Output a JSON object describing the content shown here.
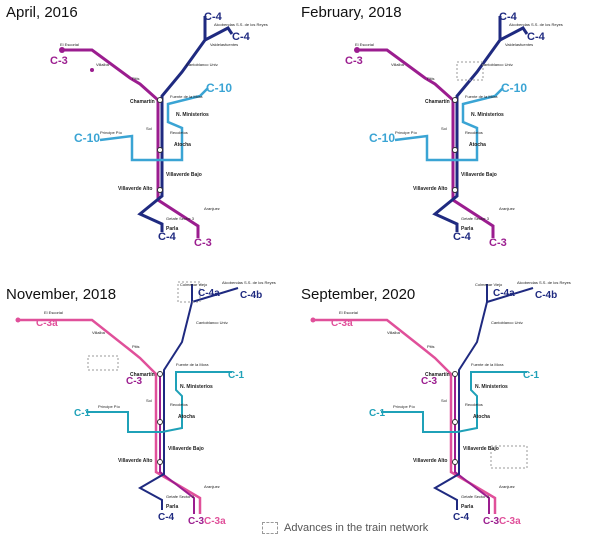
{
  "colors": {
    "c3_2016": "#9b1d8f",
    "c4": "#1f2a80",
    "c10": "#3aa4d4",
    "c3_2018b": "#e0509a",
    "c1": "#1fa1b8",
    "advance_box": "#9a9a9a"
  },
  "panels": [
    {
      "title": "April, 2016",
      "labels": {
        "c4_top": "C-4",
        "c4_right": "C-4",
        "c3_left": "C-3",
        "c3_bottom": "C-3",
        "c4_bottom": "C-4",
        "c10_right": "C-10",
        "c10_left": "C-10",
        "el_escorial": "El Escorial",
        "alcobendas": "Alcobendas S.S. de los Reyes",
        "valdelasfuentes": "Valdelasfuentes",
        "cantoblanco": "Cantoblanco Univ.",
        "villalba": "Villalba",
        "pitis": "Pitis",
        "chamartin": "Chamartín",
        "nuevos_ministerios": "N. Ministerios",
        "principe_pio": "Príncipe Pío",
        "atocha": "Atocha",
        "sol": "Sol",
        "villaverde_bajo": "Villaverde Bajo",
        "villaverde_alto": "Villaverde Alto",
        "parla": "Parla",
        "getafe": "Getafe Sector 3",
        "aranjuez": "Aranjuez",
        "principe_pio_2": "Fuente de la Mora",
        "recoletos": "Recoletos"
      }
    },
    {
      "title": "February, 2018",
      "labels": {
        "c4_top": "C-4",
        "c4_right": "C-4",
        "c3_left": "C-3",
        "c3_bottom": "C-3",
        "c4_bottom": "C-4",
        "c10_right": "C-10",
        "c10_left": "C-10",
        "el_escorial": "El Escorial",
        "alcobendas": "Alcobendas S.S. de los Reyes",
        "valdelasfuentes": "Valdelasfuentes",
        "cantoblanco": "Cantoblanco Univ.",
        "villalba": "Villalba",
        "pitis": "Pitis",
        "chamartin": "Chamartín",
        "nuevos_ministerios": "N. Ministerios",
        "principe_pio": "Príncipe Pío",
        "atocha": "Atocha",
        "sol": "Sol",
        "villaverde_bajo": "Villaverde Bajo",
        "villaverde_alto": "Villaverde Alto",
        "parla": "Parla",
        "getafe": "Getafe Sector 3",
        "aranjuez": "Aranjuez",
        "principe_pio_2": "Fuente de la Mora",
        "recoletos": "Recoletos"
      }
    },
    {
      "title": "November, 2018",
      "labels": {
        "c4_top": "C-4a",
        "c4_right": "C-4b",
        "c3_left": "C-3a",
        "c3_bottom": "C-3",
        "c3_bottom2": "C-3a",
        "c4_bottom": "C-4",
        "c1_right": "C-1",
        "c1_left": "C-1",
        "c3_mid": "C-3",
        "el_escorial": "El Escorial",
        "alcobendas": "Alcobendas S.S. de los Reyes",
        "colmenar": "Colmenar Viejo",
        "cantoblanco": "Cantoblanco Univ.",
        "villalba": "Villalba",
        "pitis": "Pitis",
        "chamartin": "Chamartín",
        "nuevos_ministerios": "N. Ministerios",
        "principe_pio": "Príncipe Pío",
        "atocha": "Atocha",
        "sol": "Sol",
        "villaverde_bajo": "Villaverde Bajo",
        "villaverde_alto": "Villaverde Alto",
        "parla": "Parla",
        "getafe": "Getafe Sector 3",
        "aranjuez": "Aranjuez",
        "principe_pio_2": "Fuente de la Mora",
        "recoletos": "Recoletos"
      }
    },
    {
      "title": "September, 2020",
      "labels": {
        "c4_top": "C-4a",
        "c4_right": "C-4b",
        "c3_left": "C-3a",
        "c3_bottom": "C-3",
        "c3_bottom2": "C-3a",
        "c4_bottom": "C-4",
        "c1_right": "C-1",
        "c1_left": "C-1",
        "c3_mid": "C-3",
        "el_escorial": "El Escorial",
        "alcobendas": "Alcobendas S.S. de los Reyes",
        "colmenar": "Colmenar Viejo",
        "cantoblanco": "Cantoblanco Univ.",
        "villalba": "Villalba",
        "pitis": "Pitis",
        "chamartin": "Chamartín",
        "nuevos_ministerios": "N. Ministerios",
        "principe_pio": "Príncipe Pío",
        "atocha": "Atocha",
        "sol": "Sol",
        "villaverde_bajo": "Villaverde Bajo",
        "villaverde_alto": "Villaverde Alto",
        "parla": "Parla",
        "getafe": "Getafe Sector 3",
        "aranjuez": "Aranjuez",
        "principe_pio_2": "Fuente de la Mora",
        "recoletos": "Recoletos"
      }
    }
  ],
  "legend": {
    "label": "Advances in the train network"
  }
}
